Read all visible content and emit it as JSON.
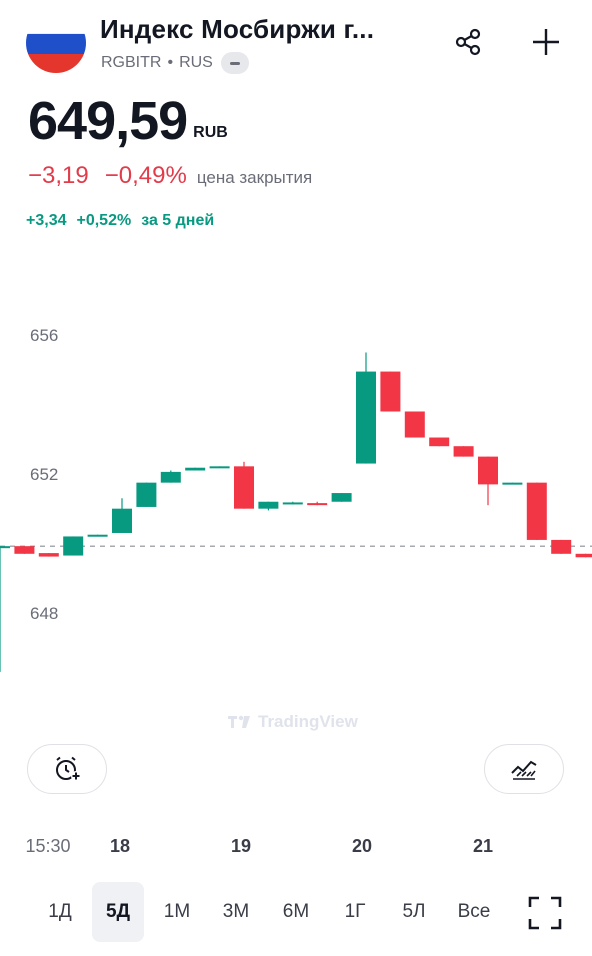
{
  "header": {
    "title": "Индекс Мосбиржи г...",
    "ticker": "RGBITR",
    "separator": "•",
    "market": "RUS",
    "flag_colors": [
      "#ffffff",
      "#1f4fc9",
      "#e5362d"
    ]
  },
  "quote": {
    "price": "649,59",
    "currency": "RUB",
    "change": "−3,19",
    "change_pct": "−0,49%",
    "close_label": "цена закрытия",
    "week_change": "+3,34",
    "week_change_pct": "+0,52%",
    "week_label": "за 5 дней"
  },
  "colors": {
    "up": "#089981",
    "down": "#f23645",
    "negative_text": "#e23b4a",
    "positive_text": "#089981"
  },
  "watermark": "TradingView",
  "buttons": {
    "alarm_icon": "alarm-plus-icon",
    "indicator_icon": "indicators-chart-icon"
  },
  "chart_data": {
    "type": "candlestick",
    "yticks": [
      656,
      652,
      648
    ],
    "ylim": [
      645.2,
      657.3
    ],
    "reference_line": 649.92,
    "xticks": [
      "15:30",
      "18",
      "19",
      "20",
      "21"
    ],
    "candles": [
      {
        "o": 649.92,
        "h": 649.92,
        "l": 646.3,
        "c": 649.92
      },
      {
        "o": 649.92,
        "h": 649.92,
        "l": 649.7,
        "c": 649.7
      },
      {
        "o": 649.72,
        "h": 649.72,
        "l": 649.62,
        "c": 649.62
      },
      {
        "o": 649.65,
        "h": 650.2,
        "l": 649.65,
        "c": 650.2
      },
      {
        "o": 650.2,
        "h": 650.25,
        "l": 650.2,
        "c": 650.25
      },
      {
        "o": 650.3,
        "h": 651.3,
        "l": 650.3,
        "c": 651.0
      },
      {
        "o": 651.05,
        "h": 651.75,
        "l": 651.05,
        "c": 651.75
      },
      {
        "o": 651.75,
        "h": 652.1,
        "l": 651.75,
        "c": 652.06
      },
      {
        "o": 652.1,
        "h": 652.18,
        "l": 652.1,
        "c": 652.18
      },
      {
        "o": 652.18,
        "h": 652.22,
        "l": 652.18,
        "c": 652.22
      },
      {
        "o": 652.22,
        "h": 652.35,
        "l": 651.0,
        "c": 651.0
      },
      {
        "o": 651.0,
        "h": 651.2,
        "l": 650.95,
        "c": 651.2
      },
      {
        "o": 651.16,
        "h": 651.2,
        "l": 651.12,
        "c": 651.18
      },
      {
        "o": 651.16,
        "h": 651.2,
        "l": 651.1,
        "c": 651.12
      },
      {
        "o": 651.2,
        "h": 651.45,
        "l": 651.2,
        "c": 651.45
      },
      {
        "o": 652.3,
        "h": 655.5,
        "l": 652.3,
        "c": 654.95
      },
      {
        "o": 654.95,
        "h": 654.95,
        "l": 653.8,
        "c": 653.8
      },
      {
        "o": 653.8,
        "h": 653.8,
        "l": 653.05,
        "c": 653.05
      },
      {
        "o": 653.05,
        "h": 653.05,
        "l": 652.8,
        "c": 652.8
      },
      {
        "o": 652.8,
        "h": 652.8,
        "l": 652.5,
        "c": 652.5
      },
      {
        "o": 652.5,
        "h": 652.5,
        "l": 651.1,
        "c": 651.7
      },
      {
        "o": 651.7,
        "h": 651.75,
        "l": 651.7,
        "c": 651.75
      },
      {
        "o": 651.75,
        "h": 651.75,
        "l": 650.1,
        "c": 650.1
      },
      {
        "o": 650.1,
        "h": 650.1,
        "l": 649.7,
        "c": 649.7
      },
      {
        "o": 649.7,
        "h": 649.7,
        "l": 649.6,
        "c": 649.6
      }
    ]
  },
  "periods": [
    {
      "label": "1Д",
      "active": false
    },
    {
      "label": "5Д",
      "active": true
    },
    {
      "label": "1М",
      "active": false
    },
    {
      "label": "3М",
      "active": false
    },
    {
      "label": "6М",
      "active": false
    },
    {
      "label": "1Г",
      "active": false
    },
    {
      "label": "5Л",
      "active": false
    },
    {
      "label": "Все",
      "active": false
    }
  ],
  "fullscreen_icon": "fullscreen-icon"
}
